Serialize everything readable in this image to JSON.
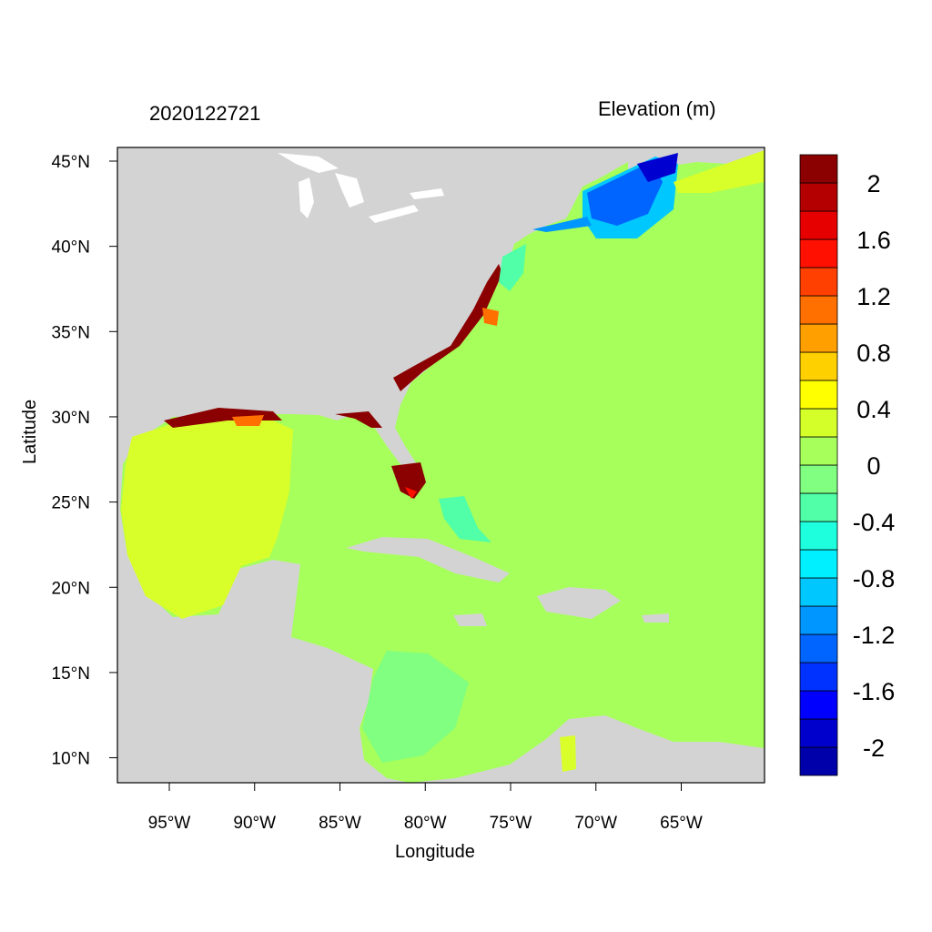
{
  "header": {
    "timestamp": "2020122721",
    "legend_title": "Elevation (m)"
  },
  "axes": {
    "xlabel": "Longitude",
    "ylabel": "Latitude",
    "x_ticks": [
      {
        "value": -95,
        "label": "95°W"
      },
      {
        "value": -90,
        "label": "90°W"
      },
      {
        "value": -85,
        "label": "85°W"
      },
      {
        "value": -80,
        "label": "80°W"
      },
      {
        "value": -75,
        "label": "75°W"
      },
      {
        "value": -70,
        "label": "70°W"
      },
      {
        "value": -65,
        "label": "65°W"
      }
    ],
    "y_ticks": [
      {
        "value": 45,
        "label": "45°N"
      },
      {
        "value": 40,
        "label": "40°N"
      },
      {
        "value": 35,
        "label": "35°N"
      },
      {
        "value": 30,
        "label": "30°N"
      },
      {
        "value": 25,
        "label": "25°N"
      },
      {
        "value": 20,
        "label": "20°N"
      },
      {
        "value": 15,
        "label": "15°N"
      },
      {
        "value": 10,
        "label": "10°N"
      }
    ]
  },
  "colorbar": {
    "colors": [
      "#0000aa",
      "#0000cd",
      "#0000ff",
      "#0032ff",
      "#0064ff",
      "#0096ff",
      "#00c8ff",
      "#00f0ff",
      "#1effde",
      "#50ffa8",
      "#80ff80",
      "#a6ff5a",
      "#d4ff28",
      "#ffff00",
      "#ffd000",
      "#ffa000",
      "#ff7000",
      "#ff4000",
      "#ff1000",
      "#e60000",
      "#b40000",
      "#8b0000"
    ],
    "labels": [
      {
        "value": 2,
        "label": "2"
      },
      {
        "value": 1.6,
        "label": "1.6"
      },
      {
        "value": 1.2,
        "label": "1.2"
      },
      {
        "value": 0.8,
        "label": "0.8"
      },
      {
        "value": 0.4,
        "label": "0.4"
      },
      {
        "value": 0,
        "label": "0"
      },
      {
        "value": -0.4,
        "label": "-0.4"
      },
      {
        "value": -0.8,
        "label": "-0.8"
      },
      {
        "value": -1.2,
        "label": "-1.2"
      },
      {
        "value": -1.6,
        "label": "-1.6"
      },
      {
        "value": -2,
        "label": "-2"
      }
    ]
  },
  "map_colors": {
    "ocean": "#a6ff5a",
    "land": "#d3d3d3",
    "gulf_surge": "#d8ff2a",
    "positive_extreme": "#8b0000",
    "negative_extreme": "#0000d0"
  }
}
